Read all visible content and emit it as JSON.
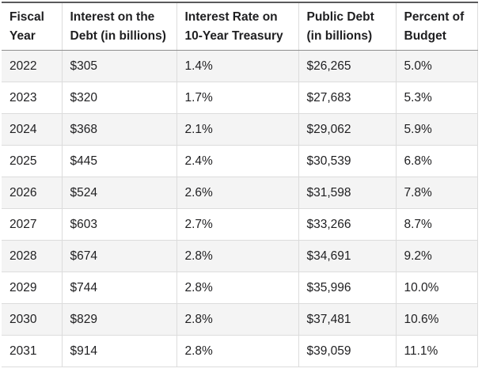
{
  "table": {
    "columns": [
      "Fiscal Year",
      "Interest on the Debt (in billions)",
      "Interest Rate on 10-Year Treasury",
      "Public Debt (in billions)",
      "Percent of Budget"
    ],
    "rows": [
      {
        "fiscal_year": "2022",
        "interest_on_debt": "$305",
        "interest_rate_10yr": "1.4%",
        "public_debt": "$26,265",
        "percent_of_budget": "5.0%"
      },
      {
        "fiscal_year": "2023",
        "interest_on_debt": "$320",
        "interest_rate_10yr": "1.7%",
        "public_debt": "$27,683",
        "percent_of_budget": "5.3%"
      },
      {
        "fiscal_year": "2024",
        "interest_on_debt": "$368",
        "interest_rate_10yr": "2.1%",
        "public_debt": "$29,062",
        "percent_of_budget": "5.9%"
      },
      {
        "fiscal_year": "2025",
        "interest_on_debt": "$445",
        "interest_rate_10yr": "2.4%",
        "public_debt": "$30,539",
        "percent_of_budget": "6.8%"
      },
      {
        "fiscal_year": "2026",
        "interest_on_debt": "$524",
        "interest_rate_10yr": "2.6%",
        "public_debt": "$31,598",
        "percent_of_budget": "7.8%"
      },
      {
        "fiscal_year": "2027",
        "interest_on_debt": "$603",
        "interest_rate_10yr": "2.7%",
        "public_debt": "$33,266",
        "percent_of_budget": "8.7%"
      },
      {
        "fiscal_year": "2028",
        "interest_on_debt": "$674",
        "interest_rate_10yr": "2.8%",
        "public_debt": "$34,691",
        "percent_of_budget": "9.2%"
      },
      {
        "fiscal_year": "2029",
        "interest_on_debt": "$744",
        "interest_rate_10yr": "2.8%",
        "public_debt": "$35,996",
        "percent_of_budget": "10.0%"
      },
      {
        "fiscal_year": "2030",
        "interest_on_debt": "$829",
        "interest_rate_10yr": "2.8%",
        "public_debt": "$37,481",
        "percent_of_budget": "10.6%"
      },
      {
        "fiscal_year": "2031",
        "interest_on_debt": "$914",
        "interest_rate_10yr": "2.8%",
        "public_debt": "$39,059",
        "percent_of_budget": "11.1%"
      }
    ],
    "striped_years": [
      "2022",
      "2024",
      "2026",
      "2028",
      "2030"
    ]
  },
  "colors": {
    "top_border": "#59595b",
    "header_rule": "#8f8f8f",
    "grid_line": "#dcdcdc",
    "stripe_background": "#f4f4f4",
    "text": "#1f1f21"
  }
}
